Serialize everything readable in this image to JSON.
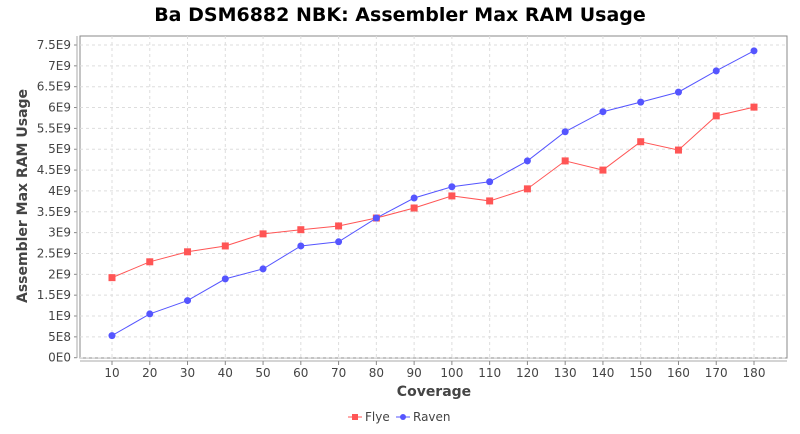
{
  "chart_data": {
    "type": "line",
    "title": "Ba DSM6882 NBK: Assembler Max RAM Usage",
    "xlabel": "Coverage",
    "ylabel": "Assembler Max RAM Usage",
    "x": [
      10,
      20,
      30,
      40,
      50,
      60,
      70,
      80,
      90,
      100,
      110,
      120,
      130,
      140,
      150,
      160,
      170,
      180
    ],
    "ylim": [
      0,
      7500000000.0
    ],
    "yticks": [
      "0E0",
      "5E8",
      "1E9",
      "1.5E9",
      "2E9",
      "2.5E9",
      "3E9",
      "3.5E9",
      "4E9",
      "4.5E9",
      "5E9",
      "5.5E9",
      "6E9",
      "6.5E9",
      "7E9",
      "7.5E9"
    ],
    "grid": true,
    "legend_position": "bottom",
    "series": [
      {
        "name": "Flye",
        "color": "#ff5555",
        "marker": "square",
        "values": [
          1920000000.0,
          2300000000.0,
          2540000000.0,
          2680000000.0,
          2970000000.0,
          3070000000.0,
          3160000000.0,
          3350000000.0,
          3590000000.0,
          3880000000.0,
          3760000000.0,
          4050000000.0,
          4720000000.0,
          4500000000.0,
          5180000000.0,
          4980000000.0,
          5800000000.0,
          6010000000.0
        ]
      },
      {
        "name": "Raven",
        "color": "#5555ff",
        "marker": "circle",
        "values": [
          530000000.0,
          1050000000.0,
          1370000000.0,
          1890000000.0,
          2130000000.0,
          2680000000.0,
          2780000000.0,
          3350000000.0,
          3830000000.0,
          4100000000.0,
          4220000000.0,
          4720000000.0,
          5420000000.0,
          5900000000.0,
          6130000000.0,
          6370000000.0,
          6880000000.0,
          7360000000.0
        ]
      }
    ]
  }
}
